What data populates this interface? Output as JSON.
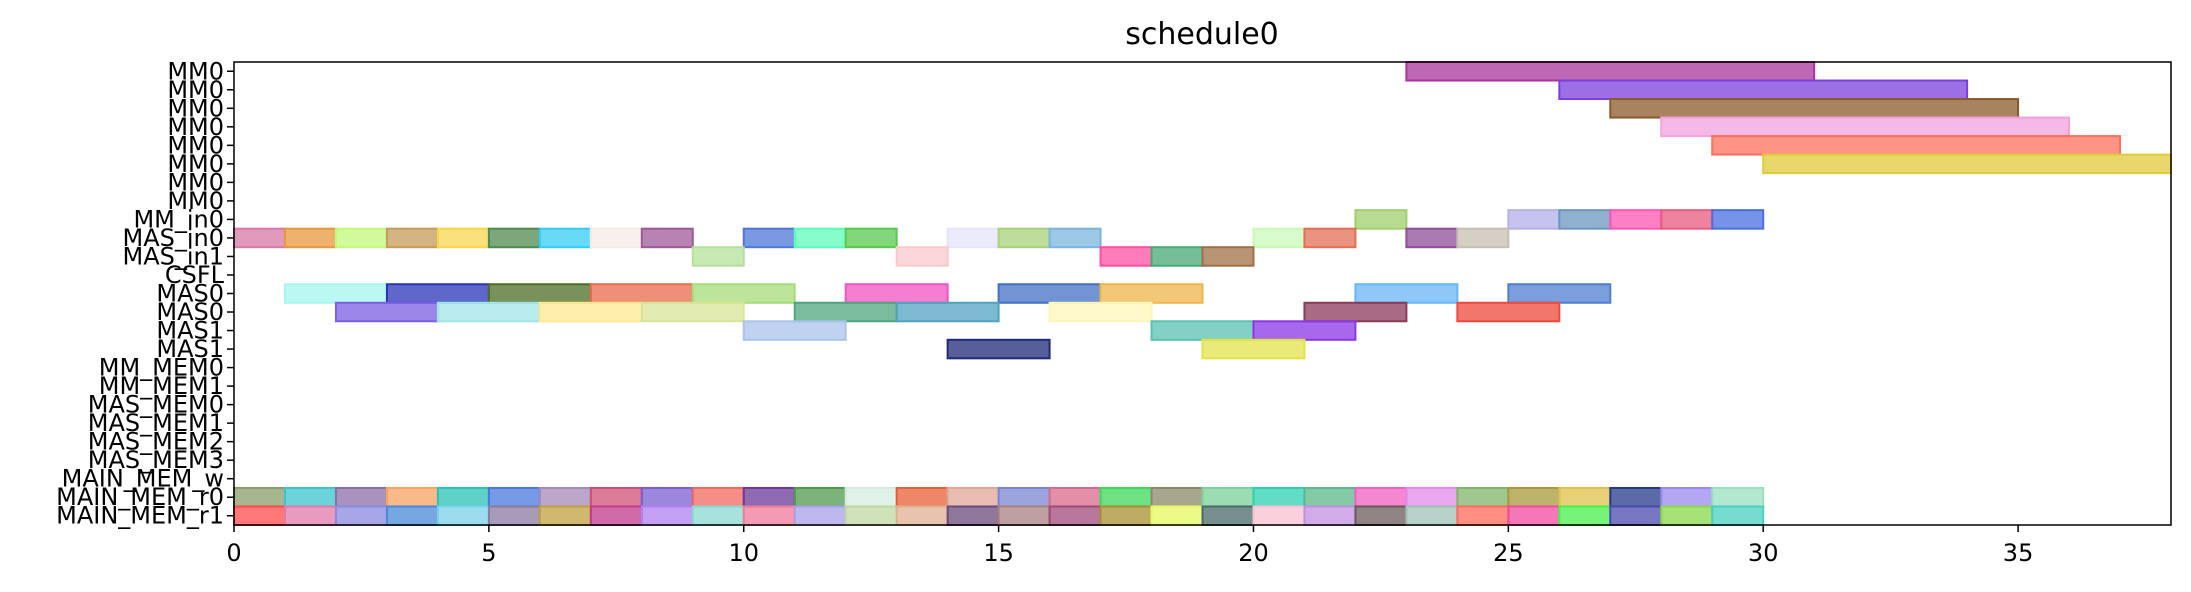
{
  "chart_data": {
    "type": "gantt",
    "title": "schedule0",
    "xlim": [
      0,
      38
    ],
    "x_ticks": [
      0,
      5,
      10,
      15,
      20,
      25,
      30,
      35
    ],
    "rows": [
      "MM0",
      "MM0",
      "MM0",
      "MM0",
      "MM0",
      "MM0",
      "MM0",
      "MM0",
      "MM_in0",
      "MAS_in0",
      "MAS_in1",
      "CSFL",
      "MAS0",
      "MAS0",
      "MAS1",
      "MAS1",
      "MM_MEM0",
      "MM_MEM1",
      "MAS_MEM0",
      "MAS_MEM1",
      "MAS_MEM2",
      "MAS_MEM3",
      "MAIN_MEM_w",
      "MAIN_MEM_r0",
      "MAIN_MEM_r1"
    ],
    "tasks": [
      {
        "row": 0,
        "start": 23,
        "end": 31,
        "color": "#a8349c"
      },
      {
        "row": 1,
        "start": 26,
        "end": 34,
        "color": "#7b3fdc"
      },
      {
        "row": 2,
        "start": 27,
        "end": 35,
        "color": "#8b5a2b"
      },
      {
        "row": 3,
        "start": 28,
        "end": 36,
        "color": "#f2a2dc"
      },
      {
        "row": 4,
        "start": 29,
        "end": 37,
        "color": "#ff6f5c"
      },
      {
        "row": 5,
        "start": 30,
        "end": 38,
        "color": "#e0cb3a"
      },
      {
        "row": 8,
        "start": 22,
        "end": 23,
        "color": "#9fcf6b"
      },
      {
        "row": 8,
        "start": 25,
        "end": 26,
        "color": "#b3b0ea"
      },
      {
        "row": 8,
        "start": 26,
        "end": 27,
        "color": "#6b96c0"
      },
      {
        "row": 8,
        "start": 27,
        "end": 28,
        "color": "#ff55b0"
      },
      {
        "row": 8,
        "start": 28,
        "end": 29,
        "color": "#e85a80"
      },
      {
        "row": 8,
        "start": 29,
        "end": 30,
        "color": "#4a6fe0"
      },
      {
        "row": 9,
        "start": 0,
        "end": 1,
        "color": "#d57aa6"
      },
      {
        "row": 9,
        "start": 1,
        "end": 2,
        "color": "#e8983e"
      },
      {
        "row": 9,
        "start": 2,
        "end": 3,
        "color": "#c2f97a"
      },
      {
        "row": 9,
        "start": 3,
        "end": 4,
        "color": "#c59b5a"
      },
      {
        "row": 9,
        "start": 4,
        "end": 5,
        "color": "#f7d64e"
      },
      {
        "row": 9,
        "start": 5,
        "end": 6,
        "color": "#4f8a4f"
      },
      {
        "row": 9,
        "start": 6,
        "end": 7,
        "color": "#35cdf5"
      },
      {
        "row": 9,
        "start": 7,
        "end": 8,
        "color": "#f5ebe5"
      },
      {
        "row": 9,
        "start": 8,
        "end": 9,
        "color": "#9d5a9a"
      },
      {
        "row": 9,
        "start": 10,
        "end": 11,
        "color": "#4f76d8"
      },
      {
        "row": 9,
        "start": 11,
        "end": 12,
        "color": "#5dfcb9"
      },
      {
        "row": 9,
        "start": 12,
        "end": 13,
        "color": "#58c94e"
      },
      {
        "row": 9,
        "start": 14,
        "end": 15,
        "color": "#e6e4fb"
      },
      {
        "row": 9,
        "start": 15,
        "end": 16,
        "color": "#a8d27a"
      },
      {
        "row": 9,
        "start": 16,
        "end": 17,
        "color": "#7bb4dc"
      },
      {
        "row": 9,
        "start": 20,
        "end": 21,
        "color": "#c9f9b9"
      },
      {
        "row": 9,
        "start": 21,
        "end": 22,
        "color": "#e26f55"
      },
      {
        "row": 9,
        "start": 23,
        "end": 24,
        "color": "#8f4d9a"
      },
      {
        "row": 9,
        "start": 24,
        "end": 25,
        "color": "#c7bfb3"
      },
      {
        "row": 10,
        "start": 9,
        "end": 10,
        "color": "#b4e19a"
      },
      {
        "row": 10,
        "start": 13,
        "end": 14,
        "color": "#fbc9cc"
      },
      {
        "row": 10,
        "start": 17,
        "end": 18,
        "color": "#ff4fa1"
      },
      {
        "row": 10,
        "start": 18,
        "end": 19,
        "color": "#48a876"
      },
      {
        "row": 10,
        "start": 19,
        "end": 20,
        "color": "#a06f46"
      },
      {
        "row": 12,
        "start": 1,
        "end": 3,
        "color": "#a6f6ee"
      },
      {
        "row": 12,
        "start": 3,
        "end": 5,
        "color": "#2a34b8"
      },
      {
        "row": 12,
        "start": 5,
        "end": 7,
        "color": "#4c6e25"
      },
      {
        "row": 12,
        "start": 7,
        "end": 9,
        "color": "#e86b4a"
      },
      {
        "row": 12,
        "start": 9,
        "end": 11,
        "color": "#a6dc7a"
      },
      {
        "row": 12,
        "start": 12,
        "end": 14,
        "color": "#f054c2"
      },
      {
        "row": 12,
        "start": 15,
        "end": 17,
        "color": "#4470c4"
      },
      {
        "row": 12,
        "start": 17,
        "end": 19,
        "color": "#eeb64a"
      },
      {
        "row": 12,
        "start": 22,
        "end": 24,
        "color": "#68b5f5"
      },
      {
        "row": 12,
        "start": 25,
        "end": 27,
        "color": "#4f7fd0"
      },
      {
        "row": 13,
        "start": 2,
        "end": 4,
        "color": "#7a5fe3"
      },
      {
        "row": 13,
        "start": 4,
        "end": 6,
        "color": "#a0e3e8"
      },
      {
        "row": 13,
        "start": 6,
        "end": 8,
        "color": "#fde88f"
      },
      {
        "row": 13,
        "start": 8,
        "end": 10,
        "color": "#d8e598"
      },
      {
        "row": 13,
        "start": 11,
        "end": 13,
        "color": "#4fa57f"
      },
      {
        "row": 13,
        "start": 13,
        "end": 15,
        "color": "#4fa3c0"
      },
      {
        "row": 13,
        "start": 16,
        "end": 18,
        "color": "#fdf5b9"
      },
      {
        "row": 13,
        "start": 21,
        "end": 23,
        "color": "#8b3a5a"
      },
      {
        "row": 13,
        "start": 24,
        "end": 26,
        "color": "#ec4a3c"
      },
      {
        "row": 14,
        "start": 10,
        "end": 12,
        "color": "#a9c3eb"
      },
      {
        "row": 14,
        "start": 18,
        "end": 20,
        "color": "#58c2b0"
      },
      {
        "row": 14,
        "start": 20,
        "end": 22,
        "color": "#8b36e5"
      },
      {
        "row": 15,
        "start": 14,
        "end": 16,
        "color": "#1f2a7a"
      },
      {
        "row": 15,
        "start": 19,
        "end": 21,
        "color": "#e2e34a"
      },
      {
        "row": 23,
        "start": 0,
        "end": 1,
        "color": "#8a9d6a"
      },
      {
        "row": 23,
        "start": 1,
        "end": 2,
        "color": "#3bc4cf"
      },
      {
        "row": 23,
        "start": 2,
        "end": 3,
        "color": "#8a6fa8"
      },
      {
        "row": 23,
        "start": 3,
        "end": 4,
        "color": "#f8a260"
      },
      {
        "row": 23,
        "start": 4,
        "end": 5,
        "color": "#2bc2b5"
      },
      {
        "row": 23,
        "start": 5,
        "end": 6,
        "color": "#4a78e0"
      },
      {
        "row": 23,
        "start": 6,
        "end": 7,
        "color": "#a58ab8"
      },
      {
        "row": 23,
        "start": 7,
        "end": 8,
        "color": "#cf4f73"
      },
      {
        "row": 23,
        "start": 8,
        "end": 9,
        "color": "#7a5fd0"
      },
      {
        "row": 23,
        "start": 9,
        "end": 10,
        "color": "#f2685e"
      },
      {
        "row": 23,
        "start": 10,
        "end": 11,
        "color": "#6a3a9a"
      },
      {
        "row": 23,
        "start": 11,
        "end": 12,
        "color": "#4f9a4f"
      },
      {
        "row": 23,
        "start": 12,
        "end": 13,
        "color": "#d4ece0"
      },
      {
        "row": 23,
        "start": 13,
        "end": 14,
        "color": "#e85f35"
      },
      {
        "row": 23,
        "start": 14,
        "end": 15,
        "color": "#e0a695"
      },
      {
        "row": 23,
        "start": 15,
        "end": 16,
        "color": "#7a86d0"
      },
      {
        "row": 23,
        "start": 16,
        "end": 17,
        "color": "#d86a8a"
      },
      {
        "row": 23,
        "start": 17,
        "end": 18,
        "color": "#3ed85a"
      },
      {
        "row": 23,
        "start": 18,
        "end": 19,
        "color": "#8a8a6a"
      },
      {
        "row": 23,
        "start": 19,
        "end": 20,
        "color": "#7bd09a"
      },
      {
        "row": 23,
        "start": 20,
        "end": 21,
        "color": "#2ed0b0"
      },
      {
        "row": 23,
        "start": 21,
        "end": 22,
        "color": "#5cb88a"
      },
      {
        "row": 23,
        "start": 22,
        "end": 23,
        "color": "#f060c0"
      },
      {
        "row": 23,
        "start": 23,
        "end": 24,
        "color": "#e08ae8"
      },
      {
        "row": 23,
        "start": 24,
        "end": 25,
        "color": "#7fb56a"
      },
      {
        "row": 23,
        "start": 25,
        "end": 26,
        "color": "#a89a3a"
      },
      {
        "row": 23,
        "start": 26,
        "end": 27,
        "color": "#e0c04a"
      },
      {
        "row": 23,
        "start": 27,
        "end": 28,
        "color": "#243a8a"
      },
      {
        "row": 23,
        "start": 28,
        "end": 29,
        "color": "#9a8af0"
      },
      {
        "row": 23,
        "start": 29,
        "end": 30,
        "color": "#9ae0c0"
      },
      {
        "row": 24,
        "start": 0,
        "end": 1,
        "color": "#ff4a4a"
      },
      {
        "row": 24,
        "start": 1,
        "end": 2,
        "color": "#e07aa8"
      },
      {
        "row": 24,
        "start": 2,
        "end": 3,
        "color": "#8a8ae0"
      },
      {
        "row": 24,
        "start": 3,
        "end": 4,
        "color": "#4a8ad8"
      },
      {
        "row": 24,
        "start": 4,
        "end": 5,
        "color": "#7ad0e8"
      },
      {
        "row": 24,
        "start": 5,
        "end": 6,
        "color": "#8a7aa0"
      },
      {
        "row": 24,
        "start": 6,
        "end": 7,
        "color": "#c0a040"
      },
      {
        "row": 24,
        "start": 7,
        "end": 8,
        "color": "#c03a8a"
      },
      {
        "row": 24,
        "start": 8,
        "end": 9,
        "color": "#b080f0"
      },
      {
        "row": 24,
        "start": 9,
        "end": 10,
        "color": "#8ad8d0"
      },
      {
        "row": 24,
        "start": 10,
        "end": 11,
        "color": "#f07a9a"
      },
      {
        "row": 24,
        "start": 11,
        "end": 12,
        "color": "#a8a0e8"
      },
      {
        "row": 24,
        "start": 12,
        "end": 13,
        "color": "#c0d8a0"
      },
      {
        "row": 24,
        "start": 13,
        "end": 14,
        "color": "#e0b090"
      },
      {
        "row": 24,
        "start": 14,
        "end": 15,
        "color": "#6a4a7a"
      },
      {
        "row": 24,
        "start": 15,
        "end": 16,
        "color": "#a88080"
      },
      {
        "row": 24,
        "start": 16,
        "end": 17,
        "color": "#a04a7a"
      },
      {
        "row": 24,
        "start": 17,
        "end": 18,
        "color": "#a89030"
      },
      {
        "row": 24,
        "start": 18,
        "end": 19,
        "color": "#e8f860"
      },
      {
        "row": 24,
        "start": 19,
        "end": 20,
        "color": "#4a6a6a"
      },
      {
        "row": 24,
        "start": 20,
        "end": 21,
        "color": "#f8c0d0"
      },
      {
        "row": 24,
        "start": 21,
        "end": 22,
        "color": "#c090e0"
      },
      {
        "row": 24,
        "start": 22,
        "end": 23,
        "color": "#6a5a5a"
      },
      {
        "row": 24,
        "start": 23,
        "end": 24,
        "color": "#a0c0b8"
      },
      {
        "row": 24,
        "start": 24,
        "end": 25,
        "color": "#ff6a5a"
      },
      {
        "row": 24,
        "start": 25,
        "end": 26,
        "color": "#f04aa0"
      },
      {
        "row": 24,
        "start": 26,
        "end": 27,
        "color": "#4af04a"
      },
      {
        "row": 24,
        "start": 27,
        "end": 28,
        "color": "#4a4ab0"
      },
      {
        "row": 24,
        "start": 28,
        "end": 29,
        "color": "#8ad84a"
      },
      {
        "row": 24,
        "start": 29,
        "end": 30,
        "color": "#4ad0c0"
      }
    ]
  }
}
